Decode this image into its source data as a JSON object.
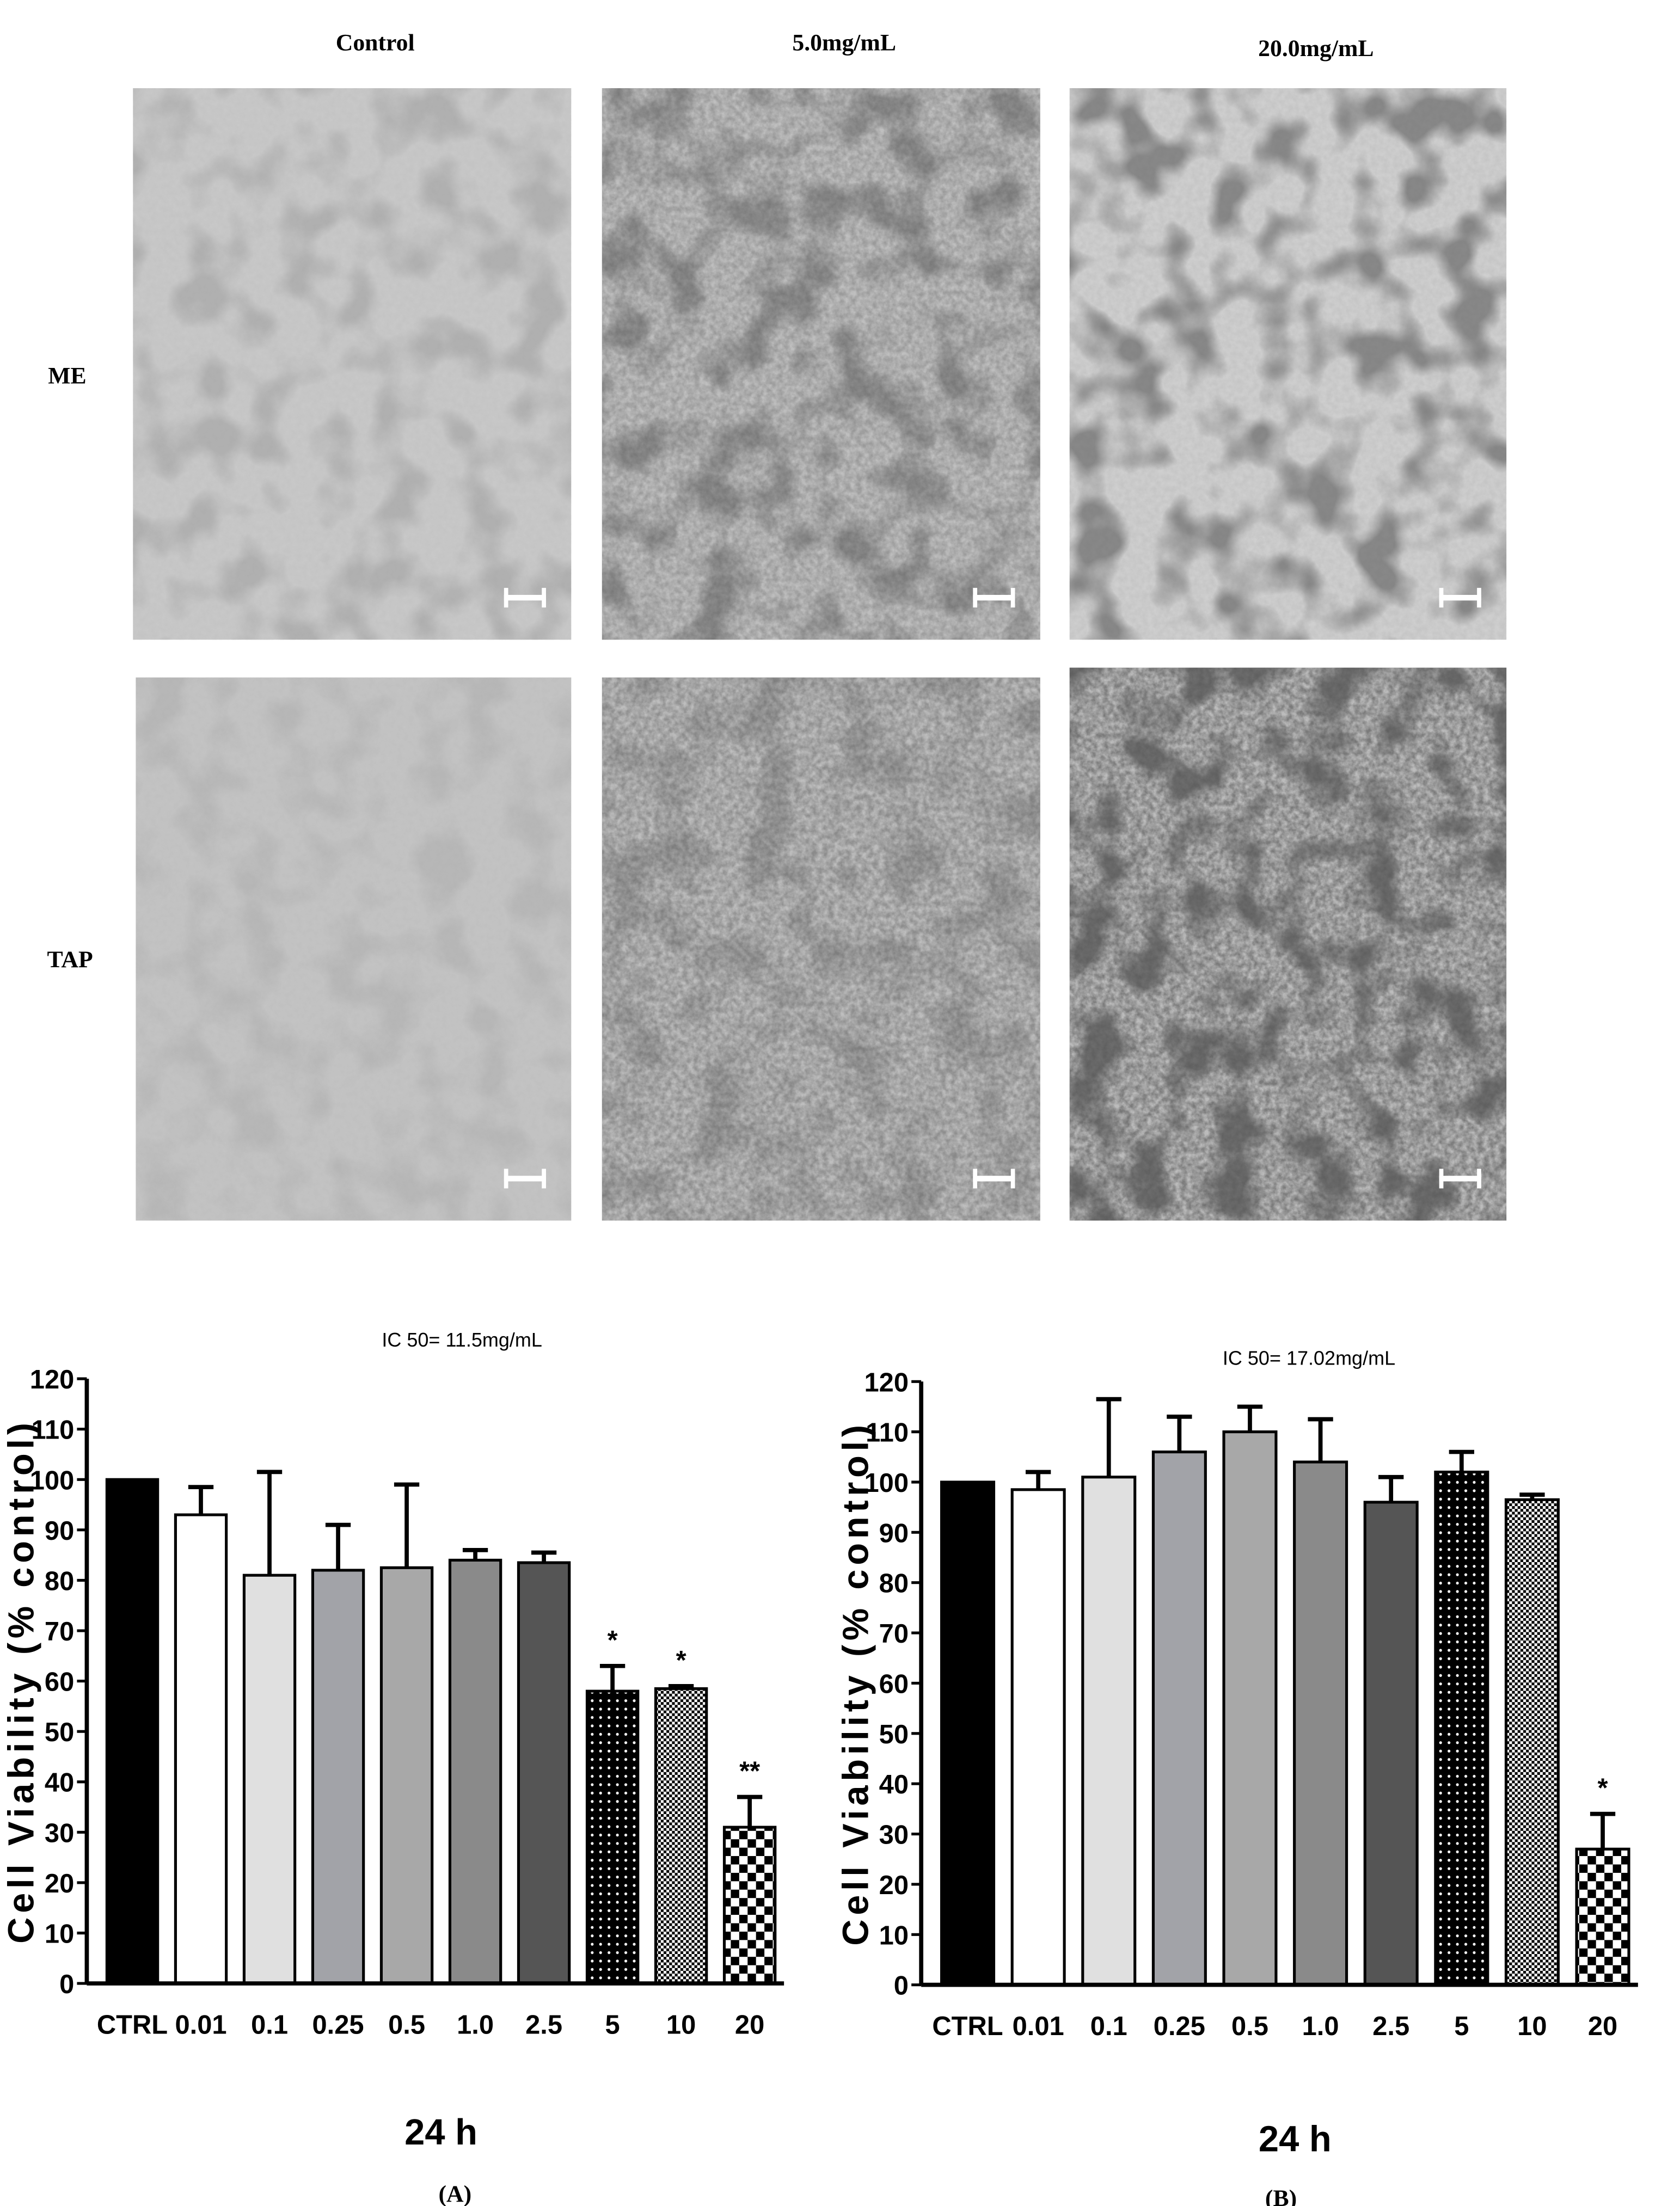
{
  "figure": {
    "column_headers": [
      "Control",
      "5.0mg/mL",
      "20.0mg/mL"
    ],
    "row_labels": [
      "ME",
      "TAP"
    ],
    "panel_labels": [
      "(A)",
      "(B)"
    ]
  },
  "chart_data": [
    {
      "type": "bar",
      "title": "IC 50= 11.5mg/mL",
      "y_label": "Cell Viability (% control)",
      "x_label": "24 h",
      "categories": [
        "CTRL",
        "0.01",
        "0.1",
        "0.25",
        "0.5",
        "1.0",
        "2.5",
        "5",
        "10",
        "20"
      ],
      "values": [
        100,
        93,
        81,
        82,
        82.5,
        84,
        83.5,
        58,
        58.5,
        31
      ],
      "errors": [
        null,
        5.5,
        20.5,
        9,
        16.5,
        2,
        2,
        5,
        0.5,
        6
      ],
      "significance": [
        null,
        null,
        null,
        null,
        null,
        null,
        null,
        "*",
        "*",
        "**"
      ],
      "colors": [
        "#000000",
        "#ffffff",
        "#e0e0e0",
        "#a2a3a8",
        "#a8a8a8",
        "#8a8a8a",
        "#555555",
        "#000000",
        "#ffffff",
        "#ffffff"
      ],
      "patterns": [
        "solid",
        "solid",
        "solid",
        "solid",
        "solid",
        "solid",
        "solid",
        "dots",
        "fine-check",
        "check"
      ],
      "ylim": [
        0,
        120
      ],
      "yticks": [
        0,
        10,
        20,
        30,
        40,
        50,
        60,
        70,
        80,
        90,
        100,
        110,
        120
      ],
      "grid": false
    },
    {
      "type": "bar",
      "title": "IC 50= 17.02mg/mL",
      "y_label": "Cell Viability (% control)",
      "x_label": "24 h",
      "categories": [
        "CTRL",
        "0.01",
        "0.1",
        "0.25",
        "0.5",
        "1.0",
        "2.5",
        "5",
        "10",
        "20"
      ],
      "values": [
        100,
        98.5,
        101,
        106,
        110,
        104,
        96,
        102,
        96.5,
        27
      ],
      "errors": [
        null,
        3.5,
        15.5,
        7,
        5,
        8.5,
        5,
        4,
        1,
        7
      ],
      "significance": [
        null,
        null,
        null,
        null,
        null,
        null,
        null,
        null,
        null,
        "*"
      ],
      "colors": [
        "#000000",
        "#ffffff",
        "#e0e0e0",
        "#a2a3a8",
        "#a8a8a8",
        "#8a8a8a",
        "#555555",
        "#000000",
        "#ffffff",
        "#ffffff"
      ],
      "patterns": [
        "solid",
        "solid",
        "solid",
        "solid",
        "solid",
        "solid",
        "solid",
        "dots",
        "fine-check",
        "check"
      ],
      "ylim": [
        0,
        120
      ],
      "yticks": [
        0,
        10,
        20,
        30,
        40,
        50,
        60,
        70,
        80,
        90,
        100,
        110,
        120
      ],
      "grid": false
    }
  ]
}
